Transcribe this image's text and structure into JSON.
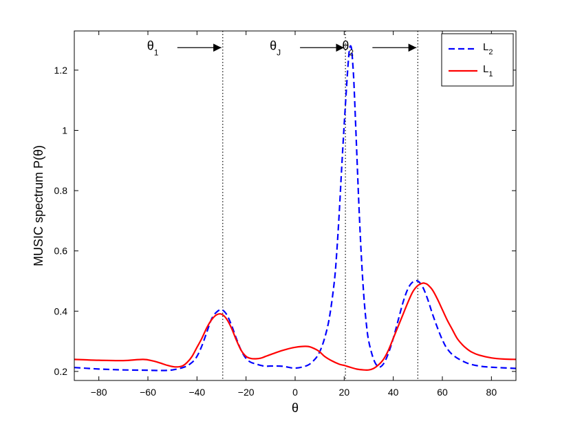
{
  "chart_data": {
    "type": "line",
    "title": "",
    "xlabel": "θ",
    "ylabel": "MUSIC spectrum P(θ)",
    "xlim": [
      -90,
      90
    ],
    "ylim": [
      0.17,
      1.33
    ],
    "xticks": [
      -80,
      -60,
      -40,
      -20,
      0,
      20,
      40,
      60,
      80
    ],
    "yticks": [
      0.2,
      0.4,
      0.6,
      0.8,
      1,
      1.2
    ],
    "ytick_labels": [
      "0.2",
      "0.4",
      "0.6",
      "0.8",
      "1",
      "1.2"
    ],
    "grid": false,
    "legend_position": "top-right",
    "legend": [
      {
        "label": "L",
        "sub": "2",
        "color": "#0000ff",
        "style": "dashed"
      },
      {
        "label": "L",
        "sub": "1",
        "color": "#ff0000",
        "style": "solid"
      }
    ],
    "series": [
      {
        "key": "L2",
        "color": "#0000ff",
        "style": "dashed",
        "x": [
          -90,
          -80,
          -70,
          -60,
          -55,
          -50,
          -45,
          -42,
          -40,
          -38,
          -36,
          -34,
          -32,
          -30,
          -28,
          -26,
          -24,
          -22,
          -20,
          -18,
          -16,
          -14,
          -12,
          -10,
          -5,
          0,
          5,
          8,
          10,
          12,
          14,
          16,
          17,
          18,
          19,
          20,
          21,
          21.5,
          22,
          22.5,
          23,
          23.5,
          24,
          25,
          26,
          27,
          28,
          29,
          30,
          32,
          34,
          36,
          38,
          40,
          42,
          44,
          46,
          48,
          50,
          52,
          54,
          56,
          58,
          60,
          62,
          65,
          70,
          75,
          80,
          90
        ],
        "y": [
          0.213,
          0.208,
          0.205,
          0.204,
          0.203,
          0.205,
          0.215,
          0.23,
          0.25,
          0.285,
          0.33,
          0.375,
          0.397,
          0.405,
          0.39,
          0.355,
          0.31,
          0.27,
          0.243,
          0.23,
          0.225,
          0.22,
          0.217,
          0.218,
          0.217,
          0.211,
          0.22,
          0.24,
          0.265,
          0.31,
          0.38,
          0.5,
          0.6,
          0.73,
          0.88,
          1.02,
          1.15,
          1.21,
          1.26,
          1.28,
          1.27,
          1.22,
          1.15,
          0.95,
          0.75,
          0.58,
          0.45,
          0.36,
          0.3,
          0.24,
          0.215,
          0.225,
          0.26,
          0.31,
          0.37,
          0.43,
          0.475,
          0.497,
          0.5,
          0.48,
          0.44,
          0.39,
          0.345,
          0.305,
          0.275,
          0.25,
          0.228,
          0.218,
          0.214,
          0.21
        ]
      },
      {
        "key": "L1",
        "color": "#ff0000",
        "style": "solid",
        "x": [
          -90,
          -80,
          -70,
          -62,
          -58,
          -55,
          -52,
          -49,
          -46,
          -44,
          -42,
          -40,
          -38,
          -36,
          -34,
          -32,
          -30,
          -28,
          -26,
          -24,
          -22,
          -20,
          -18,
          -16,
          -14,
          -12,
          -10,
          -5,
          0,
          5,
          8,
          10,
          12,
          15,
          18,
          20,
          22,
          25,
          28,
          30,
          32,
          34,
          36,
          38,
          40,
          42,
          44,
          46,
          48,
          50,
          52,
          53,
          54,
          56,
          58,
          60,
          62,
          64,
          66,
          68,
          70,
          72,
          75,
          80,
          85,
          90
        ],
        "y": [
          0.24,
          0.237,
          0.236,
          0.24,
          0.235,
          0.228,
          0.22,
          0.215,
          0.218,
          0.23,
          0.25,
          0.28,
          0.31,
          0.345,
          0.372,
          0.388,
          0.39,
          0.375,
          0.345,
          0.305,
          0.27,
          0.25,
          0.243,
          0.242,
          0.244,
          0.25,
          0.256,
          0.27,
          0.28,
          0.283,
          0.275,
          0.265,
          0.25,
          0.235,
          0.224,
          0.22,
          0.215,
          0.208,
          0.205,
          0.205,
          0.21,
          0.222,
          0.24,
          0.27,
          0.31,
          0.35,
          0.39,
          0.43,
          0.465,
          0.485,
          0.493,
          0.492,
          0.488,
          0.47,
          0.44,
          0.405,
          0.37,
          0.34,
          0.31,
          0.29,
          0.275,
          0.264,
          0.254,
          0.245,
          0.241,
          0.24
        ]
      }
    ],
    "vlines": [
      -29.5,
      20.5,
      50
    ],
    "annotations": [
      {
        "text": "θ",
        "sub": "1",
        "target_x": -29.5,
        "y": 1.27
      },
      {
        "text": "θ",
        "sub": "J",
        "target_x": 20.5,
        "y": 1.27
      },
      {
        "text": "θ",
        "sub": "2",
        "target_x": 50,
        "y": 1.27
      }
    ]
  }
}
